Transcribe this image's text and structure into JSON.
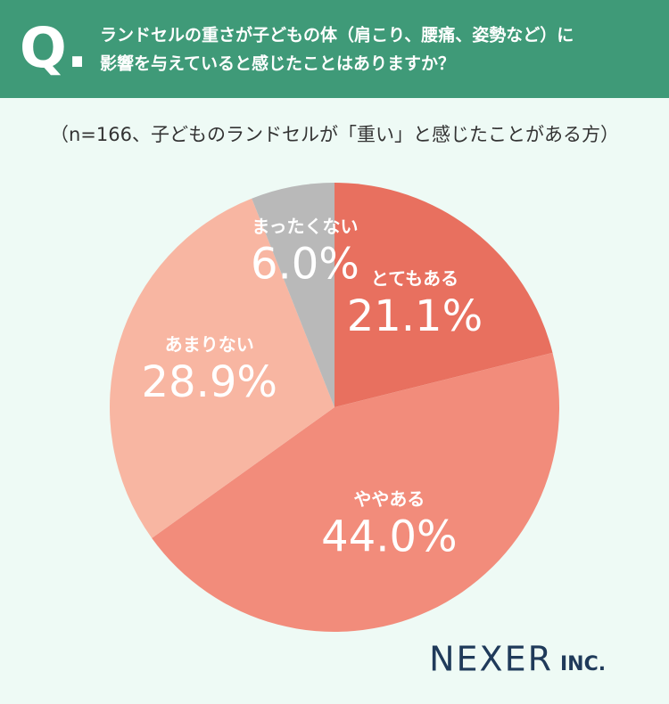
{
  "header": {
    "mark": "Q.",
    "lines": [
      "ランドセルの重さが子どもの体（肩こり、腰痛、姿勢など）に",
      "影響を与えていると感じたことはありますか？"
    ]
  },
  "chart_data": {
    "type": "pie",
    "subtitle": "（n=166、子どものランドセルが「重い」と感じたことがある方）",
    "categories": [
      "とてもある",
      "ややある",
      "あまりない",
      "まったくない"
    ],
    "values": [
      21.1,
      44.0,
      28.9,
      6.0
    ],
    "value_labels": [
      "21.1%",
      "44.0%",
      "28.9%",
      "6.0%"
    ],
    "colors": [
      "#e8705f",
      "#f28c7b",
      "#f8b6a2",
      "#b9b9b9"
    ]
  },
  "logo": {
    "name": "NEXER",
    "suffix": "INC."
  }
}
